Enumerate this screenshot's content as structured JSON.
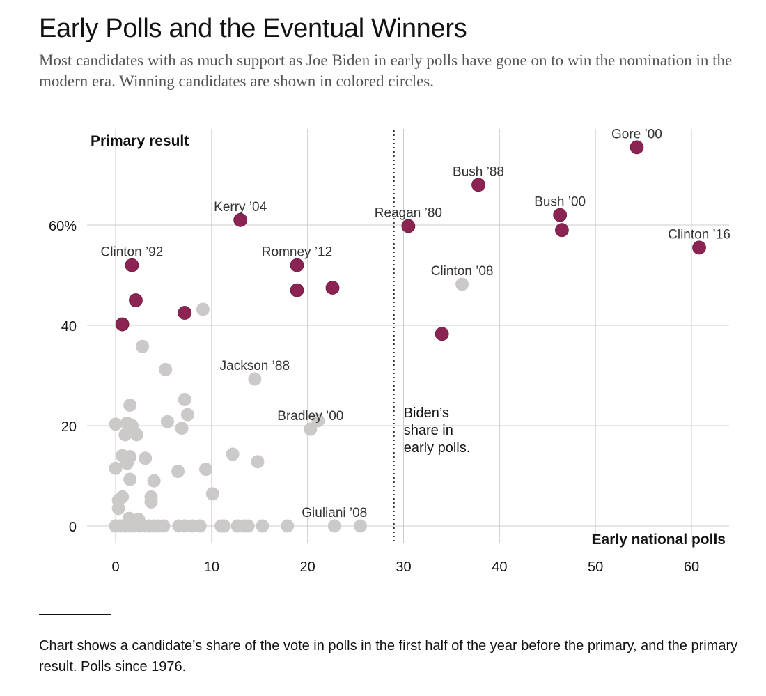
{
  "header": {
    "title": "Early Polls and the Eventual Winners",
    "subtitle": "Most candidates with as much support as Joe Biden in early polls have gone on to win the nomination in the modern era. Winning candidates are shown in colored circles."
  },
  "footer": {
    "note": "Chart shows a candidate’s share of the vote in polls in the first half of the year before the primary, and the primary result. Polls since 1976."
  },
  "colors": {
    "winner": "#8b2452",
    "other": "#cbcac8",
    "grid": "#cccccc",
    "text": "#121212"
  },
  "chart_data": {
    "type": "scatter",
    "ylabel": "Primary result",
    "xlabel": "Early national polls",
    "xlim": [
      -2,
      64
    ],
    "ylim": [
      -4,
      80
    ],
    "x_ticks": [
      0,
      10,
      20,
      30,
      40,
      50,
      60
    ],
    "y_ticks": [
      {
        "value": 0,
        "label": "0"
      },
      {
        "value": 20,
        "label": "20"
      },
      {
        "value": 40,
        "label": "40"
      },
      {
        "value": 60,
        "label": "60%"
      }
    ],
    "grid": true,
    "reference_line": {
      "x": 29,
      "label_lines": [
        "Biden’s",
        "share in",
        "early polls."
      ]
    },
    "winners": [
      {
        "x": 54.3,
        "y": 75.5,
        "label": "Gore ’00"
      },
      {
        "x": 37.8,
        "y": 68,
        "label": "Bush ’88"
      },
      {
        "x": 46.3,
        "y": 62,
        "label": "Bush ’00"
      },
      {
        "x": 46.5,
        "y": 59,
        "label": ""
      },
      {
        "x": 30.5,
        "y": 59.8,
        "label": "Reagan ’80"
      },
      {
        "x": 60.8,
        "y": 55.5,
        "label": "Clinton ’16"
      },
      {
        "x": 13,
        "y": 61,
        "label": "Kerry ’04"
      },
      {
        "x": 1.7,
        "y": 52,
        "label": "Clinton ’92"
      },
      {
        "x": 18.9,
        "y": 52,
        "label": "Romney ’12"
      },
      {
        "x": 18.9,
        "y": 47,
        "label": ""
      },
      {
        "x": 22.6,
        "y": 47.5,
        "label": ""
      },
      {
        "x": 2.1,
        "y": 45,
        "label": ""
      },
      {
        "x": 7.2,
        "y": 42.5,
        "label": ""
      },
      {
        "x": 0.7,
        "y": 40.2,
        "label": ""
      },
      {
        "x": 34,
        "y": 38.3,
        "label": ""
      }
    ],
    "others": [
      {
        "x": 36.1,
        "y": 48.2,
        "label": "Clinton ’08"
      },
      {
        "x": 14.5,
        "y": 29.3,
        "label": "Jackson ’88"
      },
      {
        "x": 20.3,
        "y": 19.3,
        "label": "Bradley ’00"
      },
      {
        "x": 21.1,
        "y": 21,
        "label": ""
      },
      {
        "x": 22.8,
        "y": 0,
        "label": "Giuliani ’08"
      },
      {
        "x": 25.5,
        "y": 0,
        "label": ""
      },
      {
        "x": 9.1,
        "y": 43.2,
        "label": ""
      },
      {
        "x": 2.8,
        "y": 35.8,
        "label": ""
      },
      {
        "x": 5.2,
        "y": 31.2,
        "label": ""
      },
      {
        "x": 7.2,
        "y": 25.2,
        "label": ""
      },
      {
        "x": 1.5,
        "y": 24.1,
        "label": ""
      },
      {
        "x": 7.5,
        "y": 22.2,
        "label": ""
      },
      {
        "x": 5.4,
        "y": 20.8,
        "label": ""
      },
      {
        "x": 6.9,
        "y": 19.5,
        "label": ""
      },
      {
        "x": 0,
        "y": 20.3,
        "label": ""
      },
      {
        "x": 1.2,
        "y": 20.5,
        "label": ""
      },
      {
        "x": 1.7,
        "y": 20,
        "label": ""
      },
      {
        "x": 1,
        "y": 18.2,
        "label": ""
      },
      {
        "x": 2.2,
        "y": 18.2,
        "label": ""
      },
      {
        "x": 0.7,
        "y": 14,
        "label": ""
      },
      {
        "x": 1.5,
        "y": 13.8,
        "label": ""
      },
      {
        "x": 3.1,
        "y": 13.5,
        "label": ""
      },
      {
        "x": 1.2,
        "y": 12.5,
        "label": ""
      },
      {
        "x": 12.2,
        "y": 14.3,
        "label": ""
      },
      {
        "x": 14.8,
        "y": 12.8,
        "label": ""
      },
      {
        "x": 0,
        "y": 11.5,
        "label": ""
      },
      {
        "x": 6.5,
        "y": 10.9,
        "label": ""
      },
      {
        "x": 9.4,
        "y": 11.3,
        "label": ""
      },
      {
        "x": 1.5,
        "y": 9.3,
        "label": ""
      },
      {
        "x": 4,
        "y": 9,
        "label": ""
      },
      {
        "x": 10.1,
        "y": 6.4,
        "label": ""
      },
      {
        "x": 0.7,
        "y": 5.8,
        "label": ""
      },
      {
        "x": 3.7,
        "y": 5.8,
        "label": ""
      },
      {
        "x": 0.3,
        "y": 5.1,
        "label": ""
      },
      {
        "x": 3.7,
        "y": 4.8,
        "label": ""
      },
      {
        "x": 0.3,
        "y": 3.5,
        "label": ""
      },
      {
        "x": 1.4,
        "y": 1.5,
        "label": ""
      },
      {
        "x": 2.4,
        "y": 1.3,
        "label": ""
      },
      {
        "x": 0,
        "y": 0,
        "label": ""
      },
      {
        "x": 0.5,
        "y": 0,
        "label": ""
      },
      {
        "x": 1,
        "y": 0,
        "label": ""
      },
      {
        "x": 1.5,
        "y": 0,
        "label": ""
      },
      {
        "x": 2,
        "y": 0,
        "label": ""
      },
      {
        "x": 2.5,
        "y": 0,
        "label": ""
      },
      {
        "x": 3,
        "y": 0,
        "label": ""
      },
      {
        "x": 3.5,
        "y": 0,
        "label": ""
      },
      {
        "x": 4,
        "y": 0,
        "label": ""
      },
      {
        "x": 4.5,
        "y": 0,
        "label": ""
      },
      {
        "x": 5,
        "y": 0,
        "label": ""
      },
      {
        "x": 6.6,
        "y": 0,
        "label": ""
      },
      {
        "x": 7.2,
        "y": 0,
        "label": ""
      },
      {
        "x": 8,
        "y": 0,
        "label": ""
      },
      {
        "x": 8.8,
        "y": 0,
        "label": ""
      },
      {
        "x": 11,
        "y": 0,
        "label": ""
      },
      {
        "x": 11.3,
        "y": 0,
        "label": ""
      },
      {
        "x": 12.7,
        "y": 0,
        "label": ""
      },
      {
        "x": 13.4,
        "y": 0,
        "label": ""
      },
      {
        "x": 13.8,
        "y": 0,
        "label": ""
      },
      {
        "x": 15.3,
        "y": 0,
        "label": ""
      },
      {
        "x": 17.9,
        "y": 0,
        "label": ""
      }
    ]
  }
}
